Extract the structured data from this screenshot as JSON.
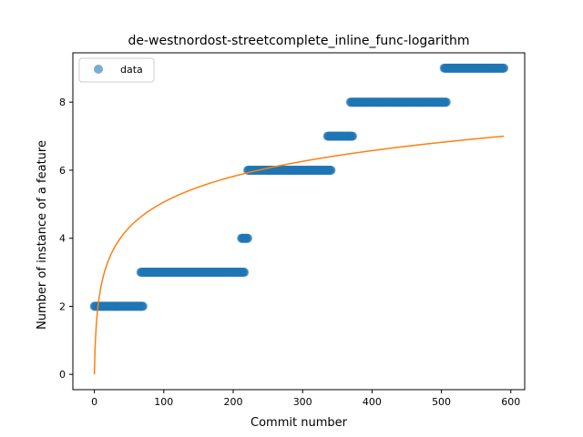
{
  "chart_data": {
    "type": "scatter",
    "title": "de-westnordost-streetcomplete_inline_func-logarithm",
    "xlabel": "Commit number",
    "ylabel": "Number of instance of a feature",
    "xlim": [
      -31,
      620
    ],
    "ylim": [
      -0.45,
      9.45
    ],
    "x_ticks": [
      0,
      100,
      200,
      300,
      400,
      500,
      600
    ],
    "y_ticks": [
      0,
      2,
      4,
      6,
      8
    ],
    "grid": false,
    "legend": {
      "position": "top-left",
      "entries": [
        "data"
      ]
    },
    "series": [
      {
        "name": "data",
        "kind": "points",
        "color": "#1f77b4",
        "opacity": 0.6,
        "segments": [
          {
            "x_start": 0,
            "x_end": 70,
            "y": 2
          },
          {
            "x_start": 67,
            "x_end": 216,
            "y": 3
          },
          {
            "x_start": 212,
            "x_end": 221,
            "y": 4
          },
          {
            "x_start": 221,
            "x_end": 341,
            "y": 6
          },
          {
            "x_start": 336,
            "x_end": 372,
            "y": 7
          },
          {
            "x_start": 369,
            "x_end": 507,
            "y": 8
          },
          {
            "x_start": 504,
            "x_end": 590,
            "y": 9
          }
        ]
      },
      {
        "kind": "line",
        "color": "#ff7f0e",
        "function": "logarithm",
        "x_range": [
          0,
          590
        ],
        "y_at_start": 0,
        "y_at_end": 7.0
      }
    ]
  }
}
